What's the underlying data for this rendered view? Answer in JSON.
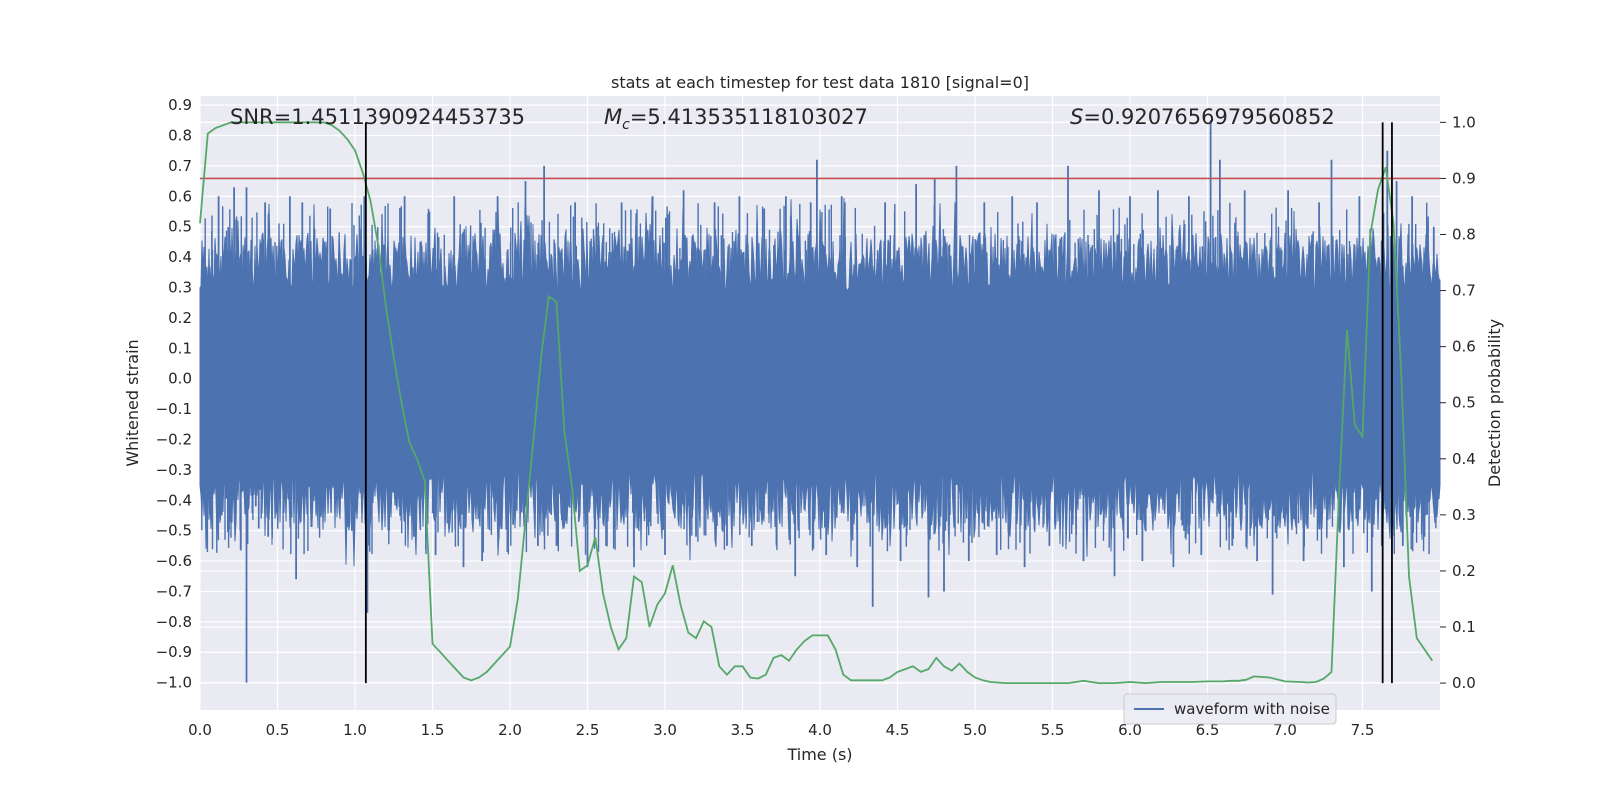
{
  "chart_data": {
    "type": "line",
    "title": "stats at each timestep for test data 1810 [signal=0]",
    "xlabel": "Time (s)",
    "ylabel": "Whitened strain",
    "ylabel_right": "Detection probability",
    "xlim": [
      0.0,
      8.0
    ],
    "ylim": [
      -1.09,
      0.93
    ],
    "ylim_right": [
      -0.048,
      1.047
    ],
    "x_ticks": [
      "0.0",
      "0.5",
      "1.0",
      "1.5",
      "2.0",
      "2.5",
      "3.0",
      "3.5",
      "4.0",
      "4.5",
      "5.0",
      "5.5",
      "6.0",
      "6.5",
      "7.0",
      "7.5"
    ],
    "y_ticks": [
      "0.9",
      "0.8",
      "0.7",
      "0.6",
      "0.5",
      "0.4",
      "0.3",
      "0.2",
      "0.1",
      "0.0",
      "-0.1",
      "-0.2",
      "-0.3",
      "-0.4",
      "-0.5",
      "-0.6",
      "-0.7",
      "-0.8",
      "-0.9",
      "-1.0"
    ],
    "y_ticks_right": [
      "0.0",
      "0.1",
      "0.2",
      "0.3",
      "0.4",
      "0.5",
      "0.6",
      "0.7",
      "0.8",
      "0.9",
      "1.0"
    ],
    "annotations": {
      "snr": "SNR=1.4511390924453735",
      "mc_symbol": "M",
      "mc_subscript": "c",
      "mc_value": "=5.413535118103027",
      "s_symbol": "S",
      "s_value": "=0.9207656979560852"
    },
    "legend": {
      "label": "waveform with noise",
      "placement": "lower-right"
    },
    "colors": {
      "waveform": "#4c72b0",
      "probability": "#55a868",
      "threshold": "#c44e52",
      "markers": "#000000",
      "background": "#eaeaf2",
      "grid": "#ffffff"
    },
    "series": [
      {
        "name": "waveform with noise",
        "axis": "left",
        "description_range": [
          -1.0,
          0.85
        ]
      },
      {
        "axis": "right",
        "x": [
          0.0,
          0.05,
          0.1,
          0.2,
          0.3,
          0.5,
          0.6,
          0.7,
          0.8,
          0.85,
          0.9,
          0.95,
          1.0,
          1.05,
          1.1,
          1.15,
          1.2,
          1.25,
          1.3,
          1.35,
          1.4,
          1.45,
          1.5,
          1.55,
          1.6,
          1.65,
          1.7,
          1.75,
          1.8,
          1.85,
          1.9,
          1.95,
          2.0,
          2.05,
          2.1,
          2.15,
          2.2,
          2.25,
          2.3,
          2.35,
          2.4,
          2.45,
          2.5,
          2.55,
          2.6,
          2.65,
          2.7,
          2.75,
          2.8,
          2.85,
          2.9,
          2.95,
          3.0,
          3.05,
          3.1,
          3.15,
          3.2,
          3.25,
          3.3,
          3.35,
          3.4,
          3.45,
          3.5,
          3.55,
          3.6,
          3.65,
          3.7,
          3.75,
          3.8,
          3.85,
          3.9,
          3.95,
          4.0,
          4.05,
          4.1,
          4.15,
          4.2,
          4.25,
          4.3,
          4.35,
          4.4,
          4.45,
          4.5,
          4.55,
          4.6,
          4.65,
          4.7,
          4.75,
          4.8,
          4.85,
          4.9,
          4.95,
          5.0,
          5.05,
          5.1,
          5.2,
          5.3,
          5.5,
          5.6,
          5.65,
          5.7,
          5.8,
          5.9,
          6.0,
          6.1,
          6.2,
          6.3,
          6.4,
          6.5,
          6.6,
          6.65,
          6.7,
          6.75,
          6.8,
          6.9,
          7.0,
          7.1,
          7.15,
          7.2,
          7.25,
          7.3,
          7.35,
          7.4,
          7.45,
          7.5,
          7.55,
          7.6,
          7.65,
          7.7,
          7.75,
          7.8,
          7.85,
          7.9,
          7.95
        ],
        "values": [
          0.82,
          0.98,
          0.99,
          1.0,
          1.0,
          1.0,
          1.0,
          1.0,
          1.0,
          0.995,
          0.985,
          0.97,
          0.95,
          0.91,
          0.86,
          0.78,
          0.67,
          0.58,
          0.5,
          0.43,
          0.4,
          0.36,
          0.07,
          0.055,
          0.04,
          0.025,
          0.01,
          0.005,
          0.01,
          0.02,
          0.035,
          0.05,
          0.065,
          0.15,
          0.29,
          0.43,
          0.58,
          0.69,
          0.68,
          0.45,
          0.35,
          0.2,
          0.21,
          0.26,
          0.16,
          0.1,
          0.06,
          0.08,
          0.19,
          0.18,
          0.1,
          0.14,
          0.16,
          0.21,
          0.14,
          0.09,
          0.08,
          0.11,
          0.1,
          0.03,
          0.015,
          0.03,
          0.03,
          0.01,
          0.008,
          0.015,
          0.045,
          0.05,
          0.04,
          0.06,
          0.075,
          0.085,
          0.085,
          0.085,
          0.06,
          0.015,
          0.005,
          0.005,
          0.005,
          0.005,
          0.005,
          0.01,
          0.02,
          0.025,
          0.03,
          0.02,
          0.025,
          0.045,
          0.03,
          0.022,
          0.035,
          0.02,
          0.01,
          0.005,
          0.002,
          0.0,
          0.0,
          0.0,
          0.0,
          0.002,
          0.004,
          0.0,
          0.0,
          0.002,
          0.0,
          0.002,
          0.002,
          0.002,
          0.003,
          0.003,
          0.004,
          0.004,
          0.006,
          0.012,
          0.01,
          0.003,
          0.002,
          0.001,
          0.002,
          0.008,
          0.02,
          0.35,
          0.63,
          0.46,
          0.44,
          0.8,
          0.88,
          0.92,
          0.82,
          0.55,
          0.19,
          0.08,
          0.06,
          0.04
        ]
      }
    ],
    "threshold": {
      "axis": "right",
      "value": 0.9
    },
    "vertical_markers_x": [
      1.07,
      7.63,
      7.69
    ],
    "vertical_marker_top": 1.0,
    "noise_spikes": [
      [
        0.06,
        -0.42
      ],
      [
        0.12,
        0.6
      ],
      [
        0.14,
        -0.45
      ],
      [
        0.22,
        0.63
      ],
      [
        0.26,
        -0.5
      ],
      [
        0.3,
        -1.0
      ],
      [
        0.3,
        0.63
      ],
      [
        0.36,
        -0.42
      ],
      [
        0.42,
        0.58
      ],
      [
        0.44,
        -0.52
      ],
      [
        0.58,
        0.6
      ],
      [
        0.62,
        -0.66
      ],
      [
        0.66,
        0.58
      ],
      [
        0.78,
        -0.45
      ],
      [
        0.84,
        0.56
      ],
      [
        0.98,
        -0.5
      ],
      [
        1.06,
        0.6
      ],
      [
        1.08,
        -0.77
      ],
      [
        1.22,
        -0.5
      ],
      [
        1.32,
        0.6
      ],
      [
        1.38,
        -0.52
      ],
      [
        1.48,
        0.55
      ],
      [
        1.52,
        -0.58
      ],
      [
        1.64,
        0.6
      ],
      [
        1.7,
        -0.62
      ],
      [
        1.82,
        -0.6
      ],
      [
        1.92,
        0.6
      ],
      [
        2.02,
        -0.48
      ],
      [
        2.1,
        0.65
      ],
      [
        2.18,
        -0.55
      ],
      [
        2.22,
        0.7
      ],
      [
        2.3,
        -0.55
      ],
      [
        2.42,
        0.58
      ],
      [
        2.5,
        -0.62
      ],
      [
        2.56,
        0.5
      ],
      [
        2.62,
        -0.55
      ],
      [
        2.72,
        0.58
      ],
      [
        2.8,
        -0.62
      ],
      [
        2.92,
        0.6
      ],
      [
        3.0,
        -0.58
      ],
      [
        3.12,
        0.62
      ],
      [
        3.2,
        -0.52
      ],
      [
        3.32,
        0.58
      ],
      [
        3.4,
        -0.55
      ],
      [
        3.48,
        0.6
      ],
      [
        3.56,
        -0.55
      ],
      [
        3.64,
        0.56
      ],
      [
        3.72,
        -0.55
      ],
      [
        3.78,
        0.6
      ],
      [
        3.84,
        -0.65
      ],
      [
        3.94,
        0.58
      ],
      [
        3.98,
        0.72
      ],
      [
        4.04,
        -0.58
      ],
      [
        4.14,
        0.6
      ],
      [
        4.24,
        -0.62
      ],
      [
        4.34,
        -0.75
      ],
      [
        4.42,
        0.58
      ],
      [
        4.52,
        -0.6
      ],
      [
        4.62,
        0.64
      ],
      [
        4.7,
        -0.72
      ],
      [
        4.74,
        0.66
      ],
      [
        4.8,
        -0.7
      ],
      [
        4.88,
        0.7
      ],
      [
        4.96,
        -0.6
      ],
      [
        5.06,
        0.58
      ],
      [
        5.14,
        -0.58
      ],
      [
        5.24,
        0.6
      ],
      [
        5.32,
        -0.62
      ],
      [
        5.4,
        0.58
      ],
      [
        5.48,
        -0.55
      ],
      [
        5.6,
        0.7
      ],
      [
        5.7,
        -0.6
      ],
      [
        5.8,
        0.62
      ],
      [
        5.9,
        -0.65
      ],
      [
        6.0,
        0.6
      ],
      [
        6.08,
        -0.6
      ],
      [
        6.18,
        0.62
      ],
      [
        6.28,
        -0.62
      ],
      [
        6.38,
        0.6
      ],
      [
        6.46,
        -0.58
      ],
      [
        6.52,
        0.85
      ],
      [
        6.58,
        0.72
      ],
      [
        6.66,
        -0.55
      ],
      [
        6.74,
        0.62
      ],
      [
        6.82,
        -0.6
      ],
      [
        6.92,
        -0.71
      ],
      [
        7.02,
        0.62
      ],
      [
        7.12,
        -0.6
      ],
      [
        7.22,
        0.58
      ],
      [
        7.3,
        0.72
      ],
      [
        7.38,
        -0.62
      ],
      [
        7.48,
        0.6
      ],
      [
        7.56,
        -0.7
      ],
      [
        7.66,
        0.75
      ],
      [
        7.72,
        0.65
      ],
      [
        7.76,
        -0.55
      ],
      [
        7.82,
        0.6
      ],
      [
        7.9,
        -0.52
      ],
      [
        7.96,
        0.5
      ]
    ]
  }
}
